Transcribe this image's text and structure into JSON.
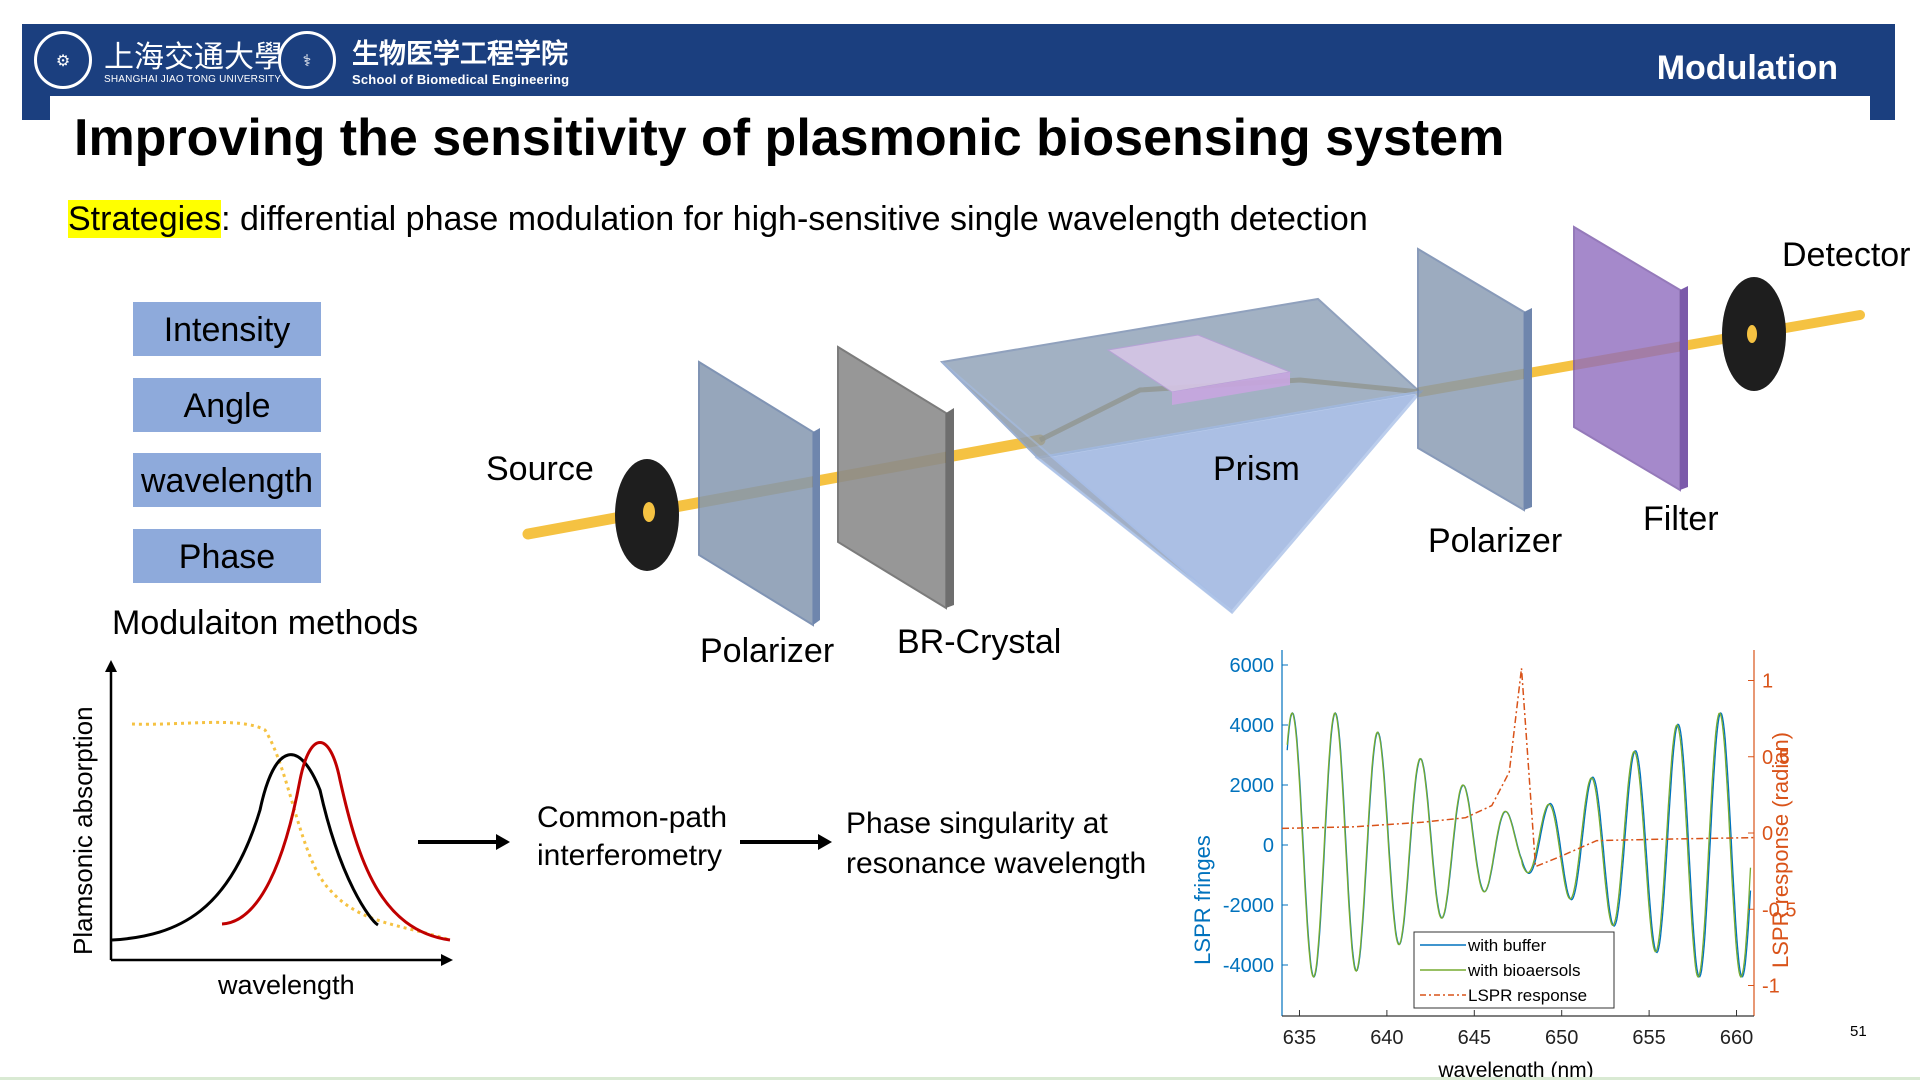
{
  "header": {
    "university_cn": "上海交通大學",
    "university_en": "SHANGHAI JIAO TONG UNIVERSITY",
    "school_cn": "生物医学工程学院",
    "school_en": "School of Biomedical Engineering",
    "section": "Modulation",
    "colors": {
      "bar": "#1b3f7f",
      "text": "#ffffff"
    }
  },
  "title": "Improving the sensitivity of plasmonic biosensing system",
  "strategy": {
    "keyword": "Strategies",
    "text": ": differential phase modulation for high-sensitive single wavelength detection"
  },
  "methods": {
    "items": [
      "Intensity",
      "Angle",
      "wavelength",
      "Phase"
    ],
    "caption": "Modulaiton methods",
    "box_color": "#8eaadb"
  },
  "setup": {
    "source": "Source",
    "polarizer1": "Polarizer",
    "crystal": "BR-Crystal",
    "prism": "Prism",
    "polarizer2": "Polarizer",
    "filter": "Filter",
    "detector": "Detector",
    "beam_color": "#f5c242"
  },
  "absorption_sketch": {
    "ylabel": "Plamsonic absorption",
    "xlabel": "wavelength"
  },
  "flow": {
    "step1": [
      "Common-path",
      "interferometry"
    ],
    "step2": [
      "Phase singularity at",
      "resonance wavelength"
    ]
  },
  "chart_data": {
    "type": "line",
    "xlabel": "wavelength (nm)",
    "ylabel_left": "LSPR fringes",
    "ylabel_right": "LSPR response (radian)",
    "xlim": [
      634,
      661
    ],
    "ylim_left": [
      -5700,
      6500
    ],
    "ylim_right": [
      -1.2,
      1.2
    ],
    "x_ticks": [
      635,
      640,
      645,
      650,
      655,
      660
    ],
    "y_ticks_left": [
      6000,
      4000,
      2000,
      0,
      -2000,
      -4000
    ],
    "y_ticks_left_labels": [
      "6000",
      "4000",
      "2000",
      "0",
      "-2000",
      "-4000"
    ],
    "y_ticks_right": [
      1,
      0.5,
      0,
      -0.5,
      -1
    ],
    "y_ticks_right_labels": [
      "1",
      "0.5",
      "0",
      "-0.5",
      "-1"
    ],
    "legend_position": "bottom-center",
    "series": [
      {
        "name": "with buffer",
        "axis": "left",
        "color": "#0072bd",
        "style": "solid"
      },
      {
        "name": "with bioaersols",
        "axis": "left",
        "color": "#77ac30",
        "style": "solid"
      },
      {
        "name": "LSPR response",
        "axis": "right",
        "color": "#d95319",
        "style": "dashdot",
        "x": [
          634,
          638,
          642,
          644.5,
          646,
          647,
          647.7,
          648,
          648.5,
          650,
          652,
          656,
          661
        ],
        "y": [
          0.03,
          0.04,
          0.07,
          0.1,
          0.18,
          0.4,
          1.08,
          0.6,
          -0.22,
          -0.15,
          -0.05,
          -0.04,
          -0.03
        ]
      }
    ]
  },
  "page_number": "51"
}
